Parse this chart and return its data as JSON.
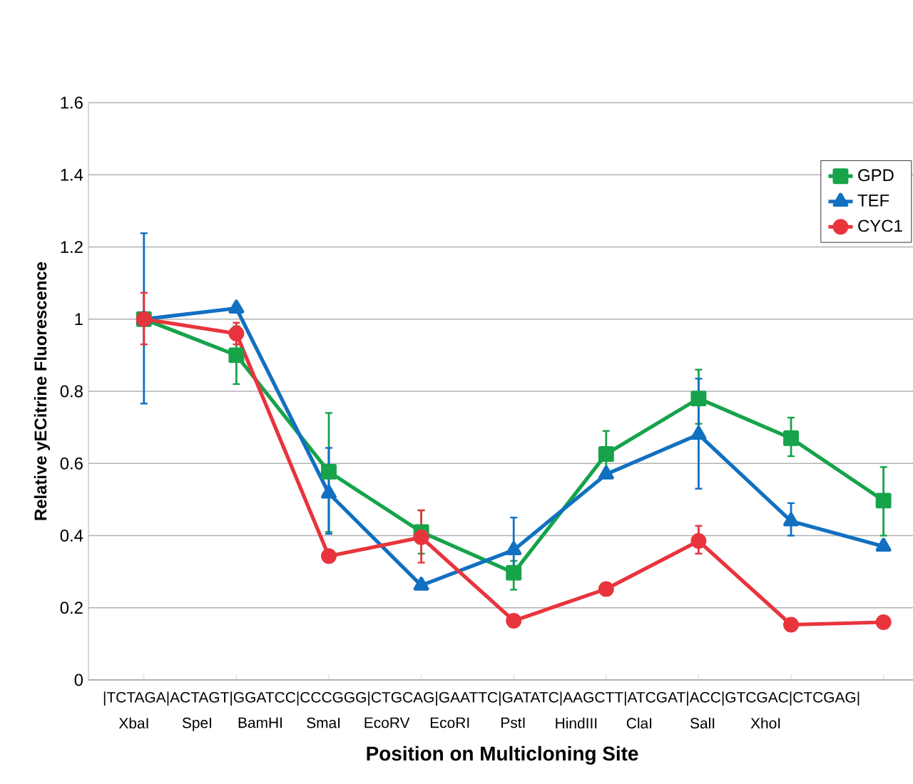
{
  "chart_data": {
    "type": "line",
    "xlabel": "Position on Multicloning Site",
    "ylabel": "Relative yECitrine Fluorescence",
    "categories": [
      null,
      null,
      null,
      null,
      null,
      null,
      null,
      null,
      null
    ],
    "series": [
      {
        "name": "GPD",
        "color": "#16a34a",
        "marker": "square",
        "values": [
          1.0,
          0.9,
          0.577,
          0.41,
          0.297,
          0.626,
          0.78,
          0.67,
          0.497
        ],
        "errors": [
          null,
          [
            0.82,
            0.98
          ],
          [
            0.41,
            0.74
          ],
          [
            0.35,
            0.47
          ],
          [
            0.25,
            0.33
          ],
          [
            0.57,
            0.69
          ],
          [
            0.71,
            0.86
          ],
          [
            0.62,
            0.727
          ],
          [
            0.4,
            0.59
          ]
        ]
      },
      {
        "name": "TEF",
        "color": "#1170c0",
        "marker": "triangle",
        "values": [
          1.0,
          1.03,
          0.517,
          0.262,
          0.36,
          0.57,
          0.68,
          0.44,
          0.37
        ],
        "errors": [
          [
            0.766,
            1.238
          ],
          null,
          [
            0.405,
            0.643
          ],
          null,
          [
            0.28,
            0.45
          ],
          null,
          [
            0.53,
            0.835
          ],
          [
            0.4,
            0.49
          ],
          null
        ]
      },
      {
        "name": "CYC1",
        "color": "#e8343c",
        "marker": "circle",
        "values": [
          1.0,
          0.96,
          0.343,
          0.395,
          0.164,
          0.252,
          0.385,
          0.153,
          0.16
        ],
        "errors": [
          [
            0.93,
            1.073
          ],
          [
            0.93,
            0.99
          ],
          null,
          [
            0.325,
            0.47
          ],
          null,
          null,
          [
            0.35,
            0.427
          ],
          null,
          null
        ]
      }
    ],
    "ylim": [
      0,
      1.6
    ],
    "yticks": [
      0,
      0.2,
      0.4,
      0.6,
      0.8,
      1,
      1.2,
      1.4,
      1.6
    ],
    "grid": "y",
    "legend": "top right",
    "tick_labels": "y",
    "line_style": "solid",
    "annotations": [
      "|TCTAGA|ACTAGT|GGATCC|CCCGGG|CTGCAG|GAATTC|GATATC|AAGCTT|ATCGAT|ACC|GTCGAC|CTCGAG|",
      "XbaI",
      "SpeI",
      "BamHI",
      "SmaI",
      "EcoRV",
      "EcoRI",
      "PstI",
      "HindIII",
      "ClaI",
      "SalI",
      "XhoI"
    ]
  }
}
